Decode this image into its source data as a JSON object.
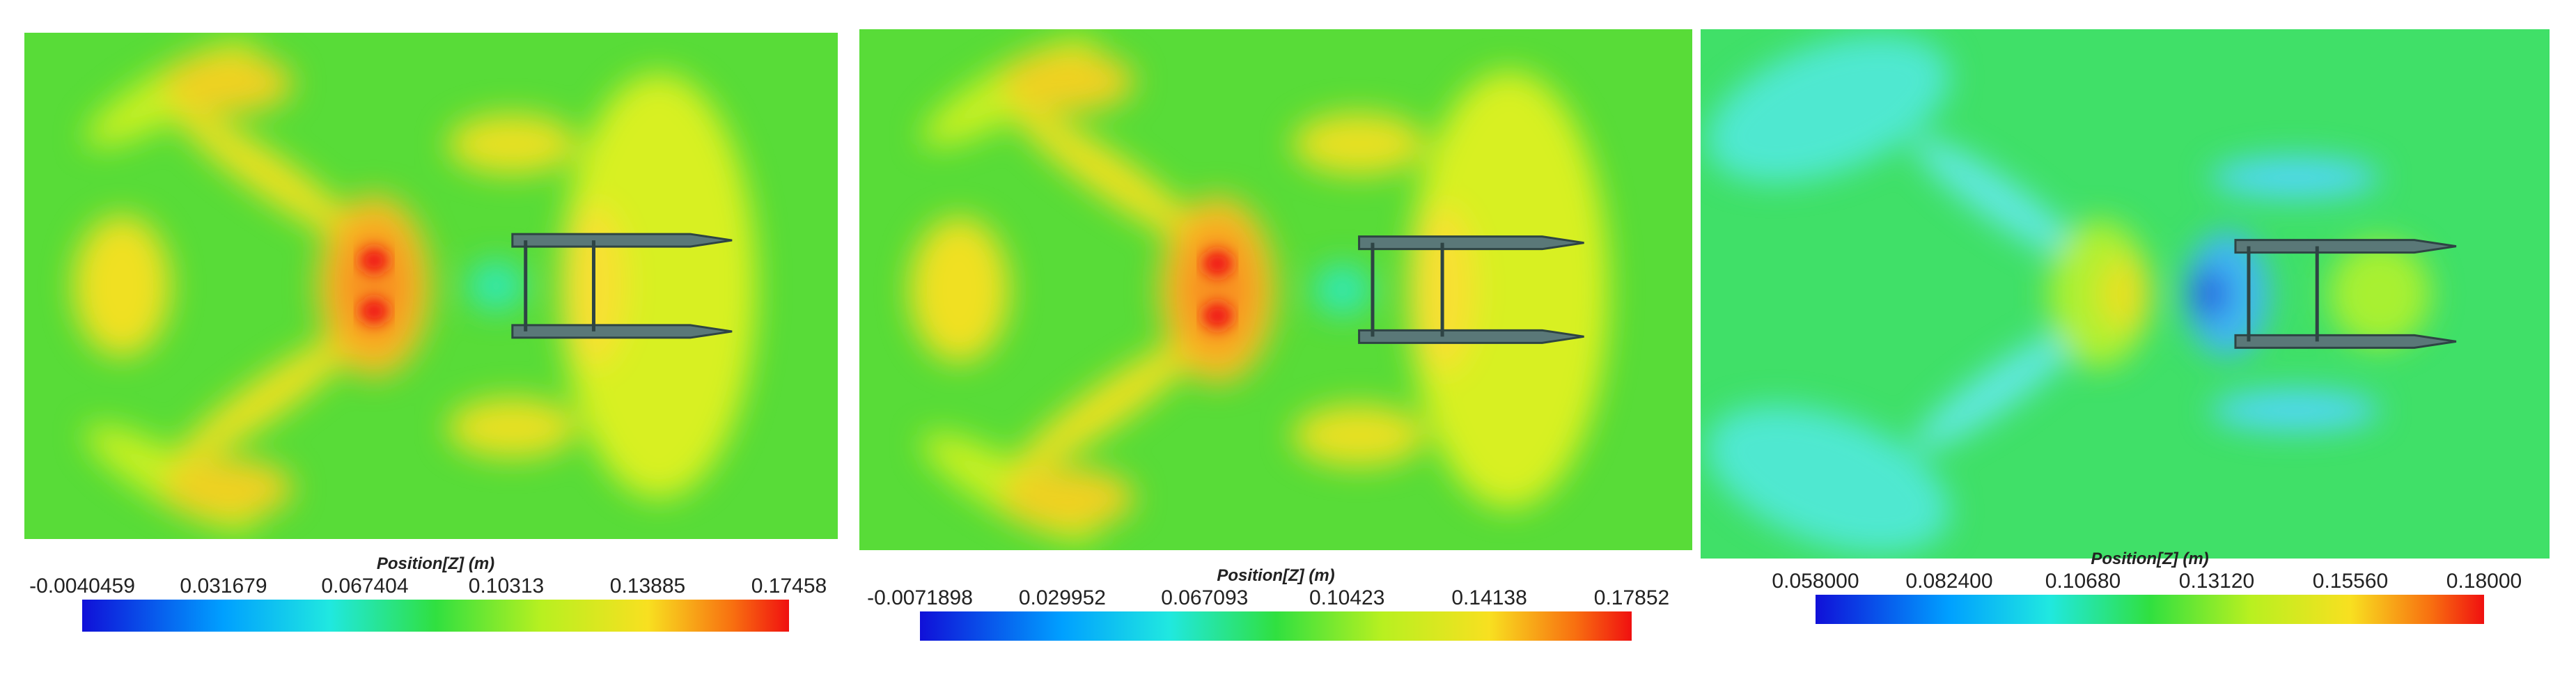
{
  "panels": [
    {
      "colorbar_title": "Position[Z] (m)",
      "colorbar_ticks": [
        "-0.0040459",
        "0.031679",
        "0.067404",
        "0.10313",
        "0.13885",
        "0.17458"
      ]
    },
    {
      "colorbar_title": "Position[Z] (m)",
      "colorbar_ticks": [
        "-0.0071898",
        "0.029952",
        "0.067093",
        "0.10423",
        "0.14138",
        "0.17852"
      ]
    },
    {
      "colorbar_title": "Position[Z] (m)",
      "colorbar_ticks": [
        "0.058000",
        "0.082400",
        "0.10680",
        "0.13120",
        "0.15560",
        "0.18000"
      ]
    }
  ]
}
